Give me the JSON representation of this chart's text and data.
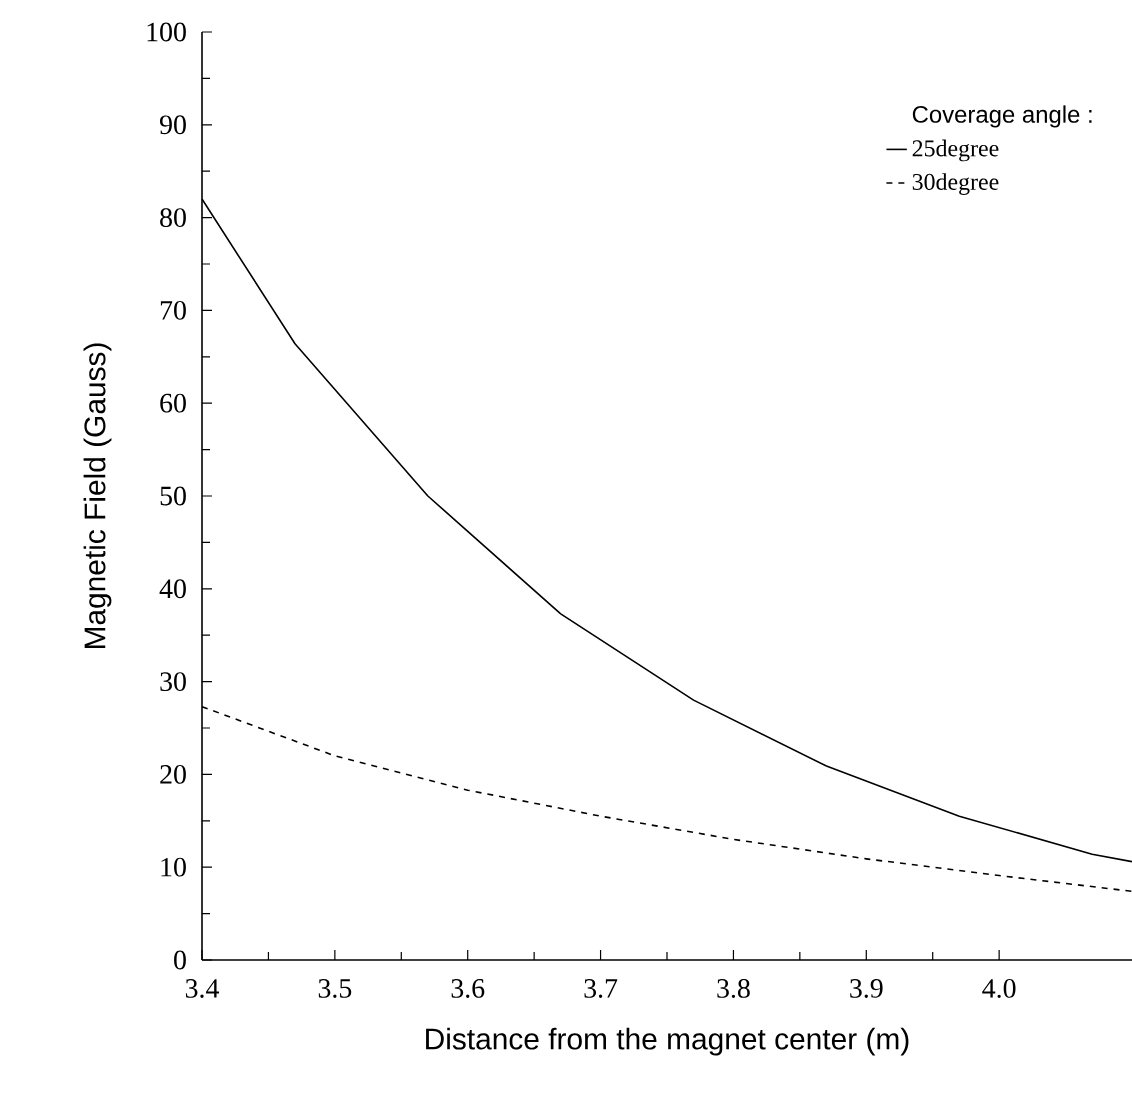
{
  "chart_data": {
    "type": "line",
    "xlabel": "Distance from the magnet center (m)",
    "ylabel": "Magnetic Field (Gauss)",
    "legend_title": "Coverage angle :",
    "legend": "top right",
    "xlim": [
      3.4,
      4.1
    ],
    "ylim": [
      0,
      100
    ],
    "xticks": [
      3.4,
      3.5,
      3.6,
      3.7,
      3.8,
      3.9,
      {
        "value": 4.0,
        "label": "4.0"
      }
    ],
    "yticks": [
      0,
      10,
      20,
      30,
      40,
      50,
      60,
      70,
      80,
      90,
      100
    ],
    "series": [
      {
        "name": "25degree",
        "color": "#000000",
        "line_style": "solid",
        "x": [
          3.4,
          3.47,
          3.57,
          3.67,
          3.77,
          3.87,
          3.97,
          4.07,
          4.1
        ],
        "values": [
          82,
          66.4,
          50,
          37.3,
          28,
          20.9,
          15.5,
          11.4,
          10.6
        ]
      },
      {
        "name": "30degree",
        "color": "#000000",
        "line_style": "dashed",
        "x": [
          3.4,
          3.5,
          3.6,
          3.7,
          3.8,
          3.9,
          4.0,
          4.1
        ],
        "values": [
          27.3,
          22,
          18.3,
          15.5,
          13,
          10.9,
          9.1,
          7.4
        ]
      }
    ]
  }
}
